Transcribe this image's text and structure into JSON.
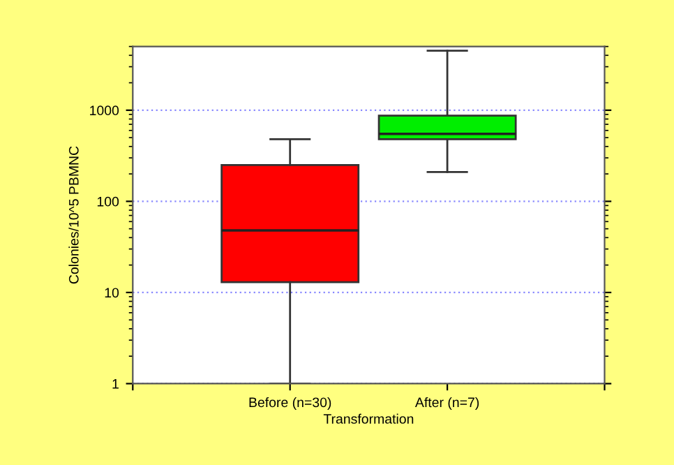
{
  "chart_data": {
    "type": "box",
    "xlabel": "Transformation",
    "ylabel": "Colonies/10^5 PBMNC",
    "categories": [
      null,
      "Before (n=30)",
      "After (n=7)",
      null
    ],
    "series": [
      {
        "color": "#ff0000",
        "boxes": [
          null,
          {
            "low": 1,
            "q1": 13,
            "median": 48,
            "q3": 250,
            "high": 480
          },
          null,
          null
        ]
      },
      {
        "color": "#00ee00",
        "boxes": [
          null,
          null,
          {
            "low": 210,
            "q1": 480,
            "median": 550,
            "q3": 870,
            "high": 4500
          },
          null
        ]
      }
    ],
    "log": "y",
    "ylim": [
      1,
      5000
    ],
    "yticks": [
      1,
      10,
      100,
      1000
    ],
    "grid": "y"
  }
}
